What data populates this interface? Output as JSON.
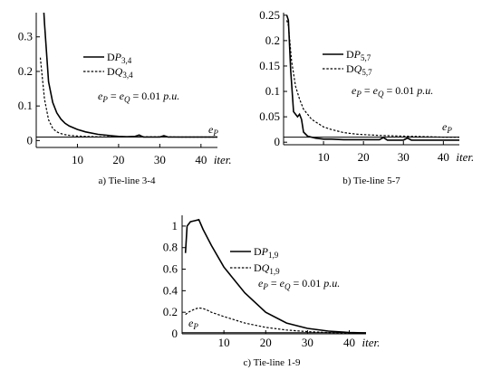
{
  "chart_data": [
    {
      "id": "a",
      "type": "line",
      "caption": "a) Tie-line 3-4",
      "xlabel": "iter.",
      "xlim": [
        0,
        44
      ],
      "ylim": [
        -0.02,
        0.37
      ],
      "xticks": [
        10,
        20,
        30,
        40
      ],
      "xtick_labels": [
        "10",
        "20",
        "30",
        "40"
      ],
      "yticks": [
        0,
        0.1,
        0.2,
        0.3
      ],
      "ytick_labels": [
        "0",
        "0.1",
        "0.2",
        "0.3"
      ],
      "threshold": {
        "label": "e",
        "label_sub": "P",
        "value": 0.01
      },
      "annotation": {
        "lhs_a": "e",
        "sub_a": "P",
        "mid": " = ",
        "lhs_b": "e",
        "sub_b": "Q",
        "rhs": " = 0.01 ",
        "unit": "p.u."
      },
      "series": [
        {
          "name_main": "D",
          "name_var": "P",
          "name_sub": "3,4",
          "style": "solid",
          "x": [
            1,
            2,
            3,
            4,
            5,
            6,
            7,
            8,
            10,
            12,
            15,
            20,
            22,
            24,
            25,
            26,
            28,
            30,
            31,
            32,
            34,
            40,
            44
          ],
          "y": [
            0.55,
            0.34,
            0.17,
            0.11,
            0.08,
            0.062,
            0.05,
            0.042,
            0.032,
            0.025,
            0.018,
            0.012,
            0.011,
            0.012,
            0.016,
            0.01,
            0.01,
            0.01,
            0.014,
            0.01,
            0.01,
            0.01,
            0.01
          ]
        },
        {
          "name_main": "D",
          "name_var": "Q",
          "name_sub": "3,4",
          "style": "dash",
          "x": [
            1,
            1.5,
            2,
            3,
            4,
            5,
            6,
            7,
            8,
            10,
            12,
            15,
            20,
            25,
            30,
            35,
            40,
            44
          ],
          "y": [
            0.24,
            0.18,
            0.12,
            0.06,
            0.035,
            0.025,
            0.02,
            0.017,
            0.015,
            0.013,
            0.012,
            0.011,
            0.011,
            0.011,
            0.011,
            0.01,
            0.01,
            0.01
          ]
        }
      ]
    },
    {
      "id": "b",
      "type": "line",
      "caption": "b) Tie-line 5-7",
      "xlabel": "iter.",
      "xlim": [
        0,
        44
      ],
      "ylim": [
        -0.005,
        0.255
      ],
      "xticks": [
        10,
        20,
        30,
        40
      ],
      "xtick_labels": [
        "10",
        "20",
        "30",
        "40"
      ],
      "yticks": [
        0,
        0.05,
        0.1,
        0.15,
        0.2,
        0.25
      ],
      "ytick_labels": [
        "0",
        "0.05",
        "0.1",
        "0.15",
        "0.2",
        "0.25"
      ],
      "threshold": {
        "label": "e",
        "label_sub": "P",
        "value": 0.01
      },
      "annotation": {
        "lhs_a": "e",
        "sub_a": "P",
        "mid": " = ",
        "lhs_b": "e",
        "sub_b": "Q",
        "rhs": " = 0.01 ",
        "unit": "p.u."
      },
      "series": [
        {
          "name_main": "D",
          "name_var": "P",
          "name_sub": "5,7",
          "style": "solid",
          "x": [
            0.8,
            1.2,
            1.8,
            2.5,
            3,
            3.5,
            4,
            4.5,
            5,
            6,
            7,
            8,
            10,
            12,
            15,
            20,
            22,
            24,
            25,
            26,
            28,
            30,
            31,
            32,
            34,
            40,
            44
          ],
          "y": [
            0.25,
            0.24,
            0.14,
            0.06,
            0.055,
            0.05,
            0.055,
            0.045,
            0.02,
            0.012,
            0.01,
            0.008,
            0.006,
            0.006,
            0.005,
            0.005,
            0.005,
            0.005,
            0.009,
            0.004,
            0.004,
            0.004,
            0.008,
            0.004,
            0.004,
            0.004,
            0.004
          ]
        },
        {
          "name_main": "D",
          "name_var": "Q",
          "name_sub": "5,7",
          "style": "dash",
          "x": [
            0.8,
            1.2,
            2,
            3,
            4,
            5,
            6,
            7,
            8,
            10,
            12,
            15,
            18,
            20,
            25,
            30,
            35,
            40,
            44
          ],
          "y": [
            0.24,
            0.23,
            0.16,
            0.11,
            0.085,
            0.065,
            0.055,
            0.045,
            0.04,
            0.03,
            0.025,
            0.019,
            0.016,
            0.015,
            0.013,
            0.012,
            0.011,
            0.01,
            0.01
          ]
        }
      ]
    },
    {
      "id": "c",
      "type": "line",
      "caption": "c) Tie-line 1-9",
      "xlabel": "iter.",
      "xlim": [
        0,
        44
      ],
      "ylim": [
        0,
        1.1
      ],
      "xticks": [
        10,
        20,
        30,
        40
      ],
      "xtick_labels": [
        "10",
        "20",
        "30",
        "40"
      ],
      "yticks": [
        0,
        0.2,
        0.4,
        0.6,
        0.8,
        1
      ],
      "ytick_labels": [
        "0",
        "0.2",
        "0.4",
        "0.6",
        "0.8",
        "1"
      ],
      "threshold": {
        "label": "e",
        "label_sub": "P",
        "value": 0.01
      },
      "annotation": {
        "lhs_a": "e",
        "sub_a": "P",
        "mid": " = ",
        "lhs_b": "e",
        "sub_b": "Q",
        "rhs": " = 0.01 ",
        "unit": "p.u."
      },
      "series": [
        {
          "name_main": "D",
          "name_var": "P",
          "name_sub": "1,9",
          "style": "solid",
          "x": [
            0.8,
            1.2,
            2,
            3,
            4,
            5,
            7,
            10,
            15,
            20,
            25,
            30,
            35,
            40,
            44
          ],
          "y": [
            0.75,
            1.0,
            1.04,
            1.05,
            1.06,
            0.97,
            0.82,
            0.62,
            0.38,
            0.2,
            0.1,
            0.05,
            0.025,
            0.012,
            0.008
          ]
        },
        {
          "name_main": "D",
          "name_var": "Q",
          "name_sub": "1,9",
          "style": "dash",
          "x": [
            0.8,
            1.5,
            2.5,
            3.5,
            4,
            5,
            6,
            7,
            10,
            15,
            20,
            25,
            30,
            35,
            40,
            44
          ],
          "y": [
            0.18,
            0.2,
            0.22,
            0.235,
            0.24,
            0.235,
            0.22,
            0.2,
            0.16,
            0.1,
            0.06,
            0.035,
            0.02,
            0.012,
            0.008,
            0.006
          ]
        }
      ]
    }
  ]
}
